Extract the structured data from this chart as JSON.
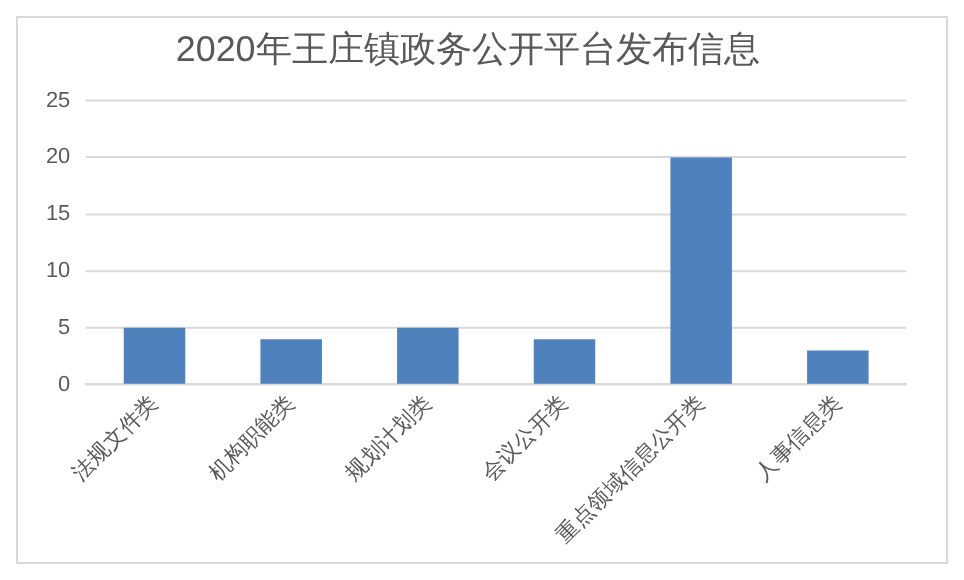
{
  "chart_data": {
    "type": "bar",
    "title": "2020年王庄镇政务公开平台发布信息",
    "categories": [
      "法规文件类",
      "机构职能类",
      "规划计划类",
      "会议公开类",
      "重点领域信息公开类",
      "人事信息类"
    ],
    "values": [
      5,
      4,
      5,
      4,
      20,
      3
    ],
    "color": "#4f81bd",
    "ylim": [
      0,
      25
    ],
    "yticks": [
      0,
      5,
      10,
      15,
      20,
      25
    ],
    "grid": "y",
    "legend": false
  }
}
